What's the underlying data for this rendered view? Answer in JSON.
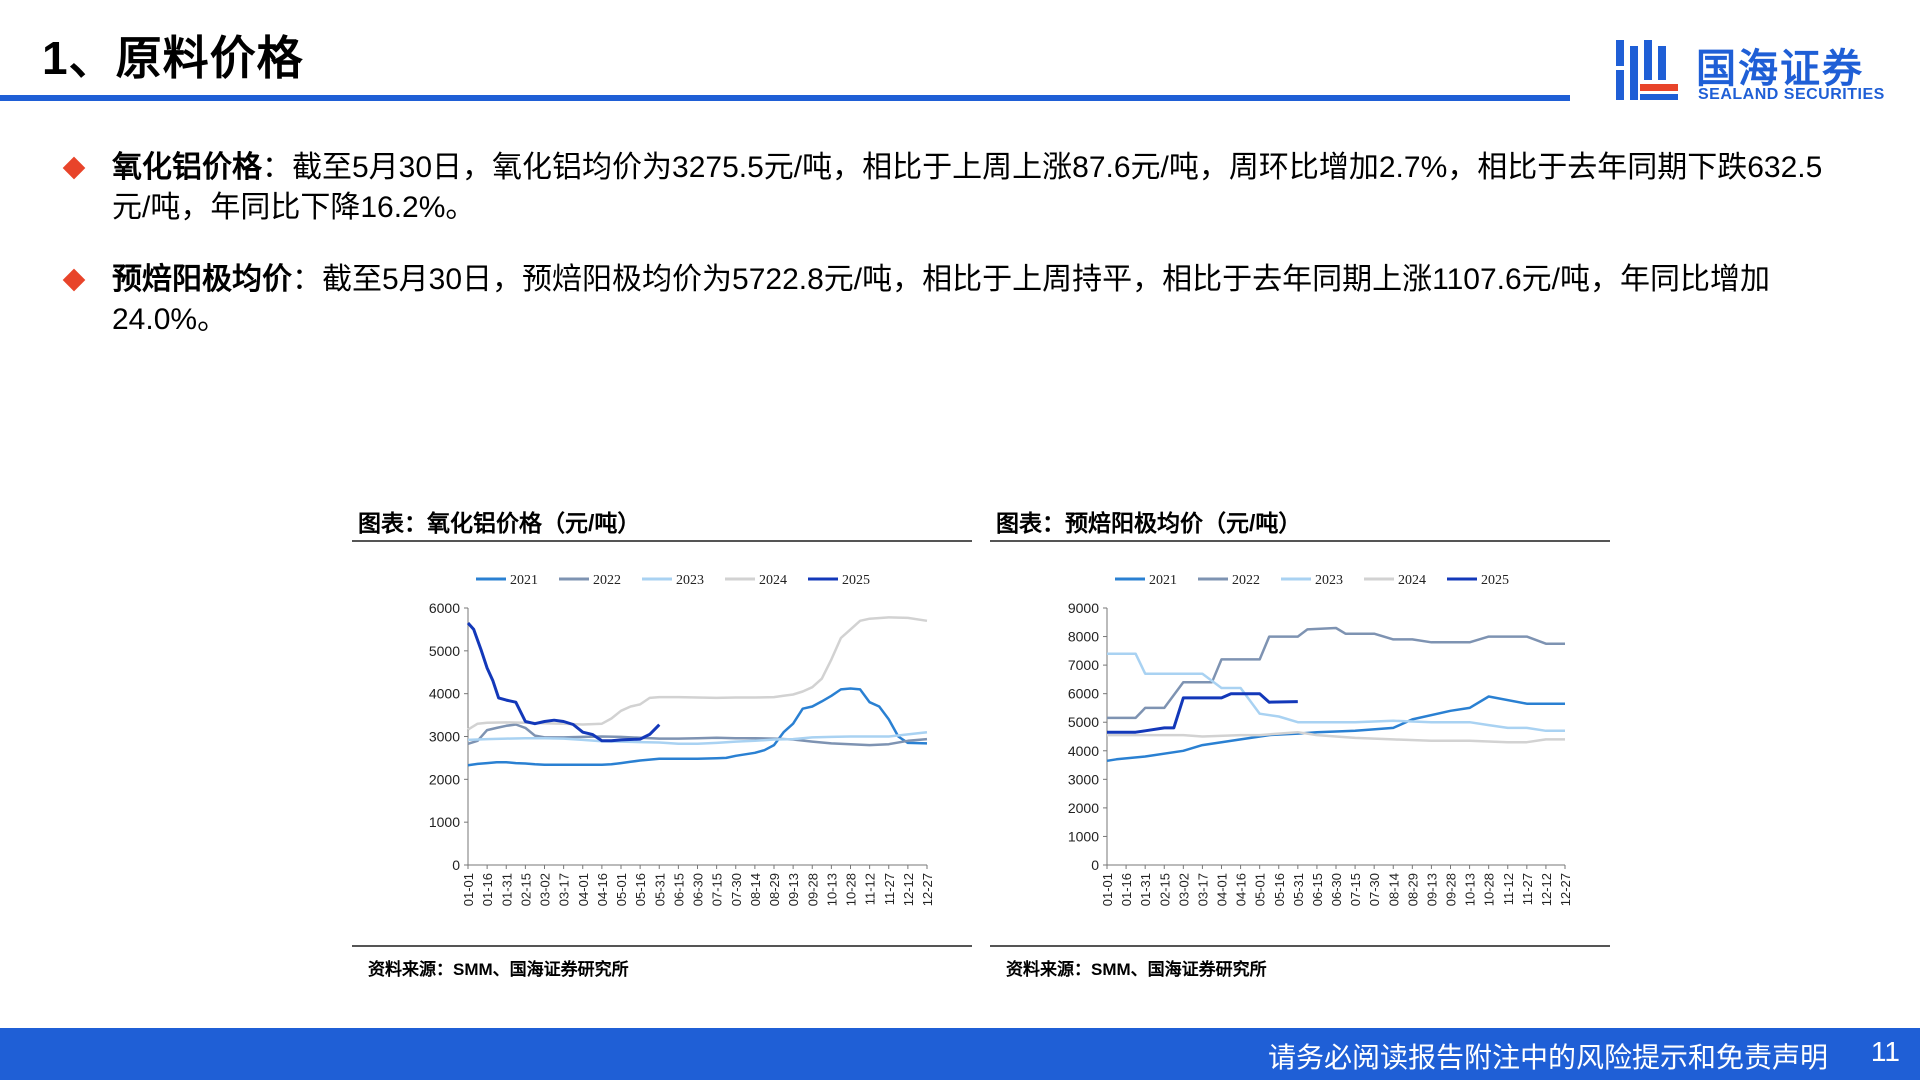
{
  "header": {
    "title": "1、原料价格"
  },
  "logo": {
    "cn": "国海证券",
    "en": "SEALAND SECURITIES"
  },
  "bullets": [
    {
      "label": "氧化铝价格",
      "text": "：截至5月30日，氧化铝均价为3275.5元/吨，相比于上周上涨87.6元/吨，周环比增加2.7%，相比于去年同期下跌632.5元/吨，年同比下降16.2%。"
    },
    {
      "label": "预焙阳极均价",
      "text": "：截至5月30日，预焙阳极均价为5722.8元/吨，相比于上周持平，相比于去年同期上涨1107.6元/吨，年同比增加24.0%。"
    }
  ],
  "chart_data": [
    {
      "type": "line",
      "title": "图表：氧化铝价格（元/吨）",
      "source": "资料来源：SMM、国海证券研究所",
      "xlabel": "",
      "ylabel": "",
      "ylim": [
        0,
        6000
      ],
      "yticks": [
        0,
        1000,
        2000,
        3000,
        4000,
        5000,
        6000
      ],
      "x_ticks": [
        "01-01",
        "01-16",
        "01-31",
        "02-15",
        "03-02",
        "03-17",
        "04-01",
        "04-16",
        "05-01",
        "05-16",
        "05-31",
        "06-15",
        "06-30",
        "07-15",
        "07-30",
        "08-14",
        "08-29",
        "09-13",
        "09-28",
        "10-13",
        "10-28",
        "11-12",
        "11-27",
        "12-12",
        "12-27"
      ],
      "legend_position": "top",
      "grid": false,
      "series": [
        {
          "name": "2021",
          "color": "#2a80d2",
          "points": [
            [
              0,
              2330
            ],
            [
              0.5,
              2360
            ],
            [
              1,
              2380
            ],
            [
              1.5,
              2400
            ],
            [
              2,
              2400
            ],
            [
              2.5,
              2380
            ],
            [
              3,
              2370
            ],
            [
              3.5,
              2350
            ],
            [
              4,
              2340
            ],
            [
              4.5,
              2340
            ],
            [
              5,
              2340
            ],
            [
              6,
              2340
            ],
            [
              7,
              2340
            ],
            [
              7.5,
              2350
            ],
            [
              8,
              2380
            ],
            [
              8.5,
              2410
            ],
            [
              9,
              2440
            ],
            [
              10,
              2480
            ],
            [
              11,
              2480
            ],
            [
              12,
              2480
            ],
            [
              13,
              2490
            ],
            [
              13.5,
              2500
            ],
            [
              14,
              2550
            ],
            [
              15,
              2620
            ],
            [
              15.5,
              2680
            ],
            [
              16,
              2800
            ],
            [
              16.5,
              3100
            ],
            [
              17,
              3300
            ],
            [
              17.5,
              3650
            ],
            [
              18,
              3700
            ],
            [
              18.5,
              3820
            ],
            [
              19,
              3950
            ],
            [
              19.5,
              4100
            ],
            [
              20,
              4120
            ],
            [
              20.5,
              4100
            ],
            [
              21,
              3800
            ],
            [
              21.5,
              3700
            ],
            [
              22,
              3400
            ],
            [
              22.5,
              3000
            ],
            [
              23,
              2850
            ],
            [
              24,
              2840
            ]
          ]
        },
        {
          "name": "2022",
          "color": "#7e93b2",
          "points": [
            [
              0,
              2830
            ],
            [
              0.5,
              2900
            ],
            [
              1,
              3150
            ],
            [
              1.5,
              3200
            ],
            [
              2,
              3250
            ],
            [
              2.5,
              3280
            ],
            [
              3,
              3200
            ],
            [
              3.5,
              3020
            ],
            [
              4,
              2980
            ],
            [
              5,
              2980
            ],
            [
              6,
              2990
            ],
            [
              7,
              3000
            ],
            [
              8,
              2990
            ],
            [
              9,
              2970
            ],
            [
              10,
              2950
            ],
            [
              11,
              2950
            ],
            [
              12,
              2960
            ],
            [
              13,
              2970
            ],
            [
              14,
              2960
            ],
            [
              15,
              2960
            ],
            [
              16,
              2950
            ],
            [
              17,
              2930
            ],
            [
              18,
              2880
            ],
            [
              19,
              2840
            ],
            [
              20,
              2820
            ],
            [
              21,
              2800
            ],
            [
              22,
              2820
            ],
            [
              23,
              2900
            ],
            [
              24,
              2940
            ]
          ]
        },
        {
          "name": "2023",
          "color": "#a9d2f2",
          "points": [
            [
              0,
              2920
            ],
            [
              1,
              2940
            ],
            [
              2,
              2950
            ],
            [
              3,
              2960
            ],
            [
              4,
              2960
            ],
            [
              5,
              2950
            ],
            [
              6,
              2920
            ],
            [
              7,
              2890
            ],
            [
              8,
              2880
            ],
            [
              9,
              2870
            ],
            [
              10,
              2860
            ],
            [
              11,
              2830
            ],
            [
              12,
              2830
            ],
            [
              13,
              2850
            ],
            [
              14,
              2880
            ],
            [
              15,
              2900
            ],
            [
              16,
              2930
            ],
            [
              17,
              2940
            ],
            [
              18,
              2980
            ],
            [
              19,
              2990
            ],
            [
              20,
              3000
            ],
            [
              21,
              3000
            ],
            [
              22,
              3000
            ],
            [
              23,
              3050
            ],
            [
              24,
              3100
            ]
          ]
        },
        {
          "name": "2024",
          "color": "#d2d2d2",
          "points": [
            [
              0,
              3160
            ],
            [
              0.5,
              3300
            ],
            [
              1,
              3320
            ],
            [
              2,
              3330
            ],
            [
              3,
              3320
            ],
            [
              4,
              3310
            ],
            [
              5,
              3300
            ],
            [
              6,
              3280
            ],
            [
              7,
              3300
            ],
            [
              7.5,
              3420
            ],
            [
              8,
              3600
            ],
            [
              8.5,
              3700
            ],
            [
              9,
              3750
            ],
            [
              9.5,
              3900
            ],
            [
              10,
              3920
            ],
            [
              11,
              3920
            ],
            [
              12,
              3910
            ],
            [
              13,
              3900
            ],
            [
              14,
              3910
            ],
            [
              15,
              3910
            ],
            [
              16,
              3920
            ],
            [
              16.5,
              3950
            ],
            [
              17,
              3980
            ],
            [
              17.5,
              4050
            ],
            [
              18,
              4150
            ],
            [
              18.5,
              4350
            ],
            [
              19,
              4800
            ],
            [
              19.5,
              5300
            ],
            [
              20,
              5500
            ],
            [
              20.5,
              5700
            ],
            [
              21,
              5750
            ],
            [
              22,
              5780
            ],
            [
              23,
              5770
            ],
            [
              24,
              5700
            ]
          ]
        },
        {
          "name": "2025",
          "color": "#1338b9",
          "points": [
            [
              0,
              5650
            ],
            [
              0.3,
              5500
            ],
            [
              0.7,
              5000
            ],
            [
              1,
              4600
            ],
            [
              1.3,
              4300
            ],
            [
              1.6,
              3900
            ],
            [
              2,
              3850
            ],
            [
              2.5,
              3800
            ],
            [
              3,
              3350
            ],
            [
              3.5,
              3300
            ],
            [
              4,
              3350
            ],
            [
              4.5,
              3380
            ],
            [
              5,
              3350
            ],
            [
              5.5,
              3280
            ],
            [
              6,
              3100
            ],
            [
              6.5,
              3050
            ],
            [
              7,
              2900
            ],
            [
              7.5,
              2900
            ],
            [
              8,
              2920
            ],
            [
              9,
              2940
            ],
            [
              9.5,
              3050
            ],
            [
              10,
              3275
            ]
          ]
        }
      ]
    },
    {
      "type": "line",
      "title": "图表：预焙阳极均价（元/吨）",
      "source": "资料来源：SMM、国海证券研究所",
      "xlabel": "",
      "ylabel": "",
      "ylim": [
        0,
        9000
      ],
      "yticks": [
        0,
        1000,
        2000,
        3000,
        4000,
        5000,
        6000,
        7000,
        8000,
        9000
      ],
      "x_ticks": [
        "01-01",
        "01-16",
        "01-31",
        "02-15",
        "03-02",
        "03-17",
        "04-01",
        "04-16",
        "05-01",
        "05-16",
        "05-31",
        "06-15",
        "06-30",
        "07-15",
        "07-30",
        "08-14",
        "08-29",
        "09-13",
        "09-28",
        "10-13",
        "10-28",
        "11-12",
        "11-27",
        "12-12",
        "12-27"
      ],
      "legend_position": "top",
      "grid": false,
      "series": [
        {
          "name": "2021",
          "color": "#2a80d2",
          "points": [
            [
              0,
              3650
            ],
            [
              0.5,
              3700
            ],
            [
              2,
              3800
            ],
            [
              4,
              4000
            ],
            [
              5,
              4200
            ],
            [
              7,
              4400
            ],
            [
              8.5,
              4550
            ],
            [
              10,
              4600
            ],
            [
              11,
              4650
            ],
            [
              13,
              4700
            ],
            [
              15,
              4800
            ],
            [
              16,
              5100
            ],
            [
              18,
              5400
            ],
            [
              19,
              5500
            ],
            [
              20,
              5900
            ],
            [
              22,
              5650
            ],
            [
              24,
              5650
            ]
          ]
        },
        {
          "name": "2022",
          "color": "#7e93b2",
          "points": [
            [
              0,
              5150
            ],
            [
              1.5,
              5150
            ],
            [
              2,
              5500
            ],
            [
              3,
              5500
            ],
            [
              4,
              6400
            ],
            [
              5.5,
              6400
            ],
            [
              6,
              7200
            ],
            [
              8,
              7200
            ],
            [
              8.5,
              8000
            ],
            [
              10,
              8000
            ],
            [
              10.5,
              8250
            ],
            [
              12,
              8300
            ],
            [
              12.5,
              8100
            ],
            [
              14,
              8100
            ],
            [
              15,
              7900
            ],
            [
              16,
              7900
            ],
            [
              17,
              7800
            ],
            [
              19,
              7800
            ],
            [
              20,
              8000
            ],
            [
              22,
              8000
            ],
            [
              23,
              7750
            ],
            [
              24,
              7750
            ]
          ]
        },
        {
          "name": "2023",
          "color": "#a9d2f2",
          "points": [
            [
              0,
              7400
            ],
            [
              1.5,
              7400
            ],
            [
              2,
              6700
            ],
            [
              5,
              6700
            ],
            [
              6,
              6200
            ],
            [
              7,
              6200
            ],
            [
              8,
              5300
            ],
            [
              9,
              5200
            ],
            [
              10,
              5000
            ],
            [
              13,
              5000
            ],
            [
              15,
              5050
            ],
            [
              17,
              5000
            ],
            [
              19,
              5000
            ],
            [
              20,
              4900
            ],
            [
              21,
              4800
            ],
            [
              22,
              4800
            ],
            [
              23,
              4700
            ],
            [
              24,
              4700
            ]
          ]
        },
        {
          "name": "2024",
          "color": "#d2d2d2",
          "points": [
            [
              0,
              4550
            ],
            [
              2,
              4550
            ],
            [
              4,
              4550
            ],
            [
              5,
              4500
            ],
            [
              7,
              4550
            ],
            [
              8,
              4550
            ],
            [
              9,
              4600
            ],
            [
              10,
              4650
            ],
            [
              11,
              4550
            ],
            [
              13,
              4450
            ],
            [
              15,
              4400
            ],
            [
              17,
              4350
            ],
            [
              19,
              4350
            ],
            [
              21,
              4300
            ],
            [
              22,
              4300
            ],
            [
              23,
              4400
            ],
            [
              24,
              4400
            ]
          ]
        },
        {
          "name": "2025",
          "color": "#1338b9",
          "points": [
            [
              0,
              4650
            ],
            [
              1.5,
              4650
            ],
            [
              2,
              4700
            ],
            [
              3,
              4800
            ],
            [
              3.5,
              4800
            ],
            [
              4,
              5850
            ],
            [
              6,
              5850
            ],
            [
              6.5,
              6000
            ],
            [
              8,
              6000
            ],
            [
              8.5,
              5700
            ],
            [
              10,
              5723
            ]
          ]
        }
      ]
    }
  ],
  "footer": {
    "text": "请务必阅读报告附注中的风险提示和免责声明",
    "page": "11"
  }
}
